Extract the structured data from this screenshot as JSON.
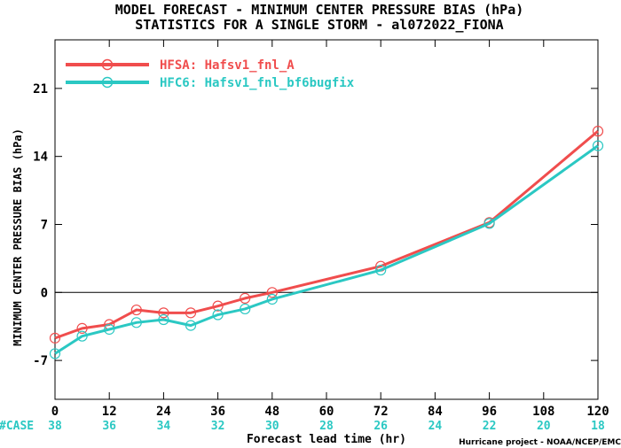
{
  "chart_data": {
    "type": "line",
    "title": "MODEL FORECAST - MINIMUM CENTER PRESSURE BIAS (hPa)",
    "subtitle": "STATISTICS FOR A SINGLE STORM - al072022_FIONA",
    "xlabel": "Forecast lead time (hr)",
    "ylabel": "MINIMUM CENTER PRESSURE BIAS (hPa)",
    "credit": "Hurricane project - NOAA/NCEP/EMC",
    "xlim": [
      0,
      120
    ],
    "ylim": [
      -11,
      26
    ],
    "x_ticks": [
      0,
      12,
      24,
      36,
      48,
      60,
      72,
      84,
      96,
      108,
      120
    ],
    "y_ticks": [
      -7,
      0,
      7,
      14,
      21
    ],
    "zero_line": true,
    "grid": false,
    "legend_position": "top-left",
    "case_label": "#CASE",
    "case_counts": [
      38,
      36,
      34,
      32,
      30,
      28,
      26,
      24,
      22,
      20,
      18
    ],
    "series": [
      {
        "name": "HFSA: Hafsv1_fnl_A",
        "color": "#f04d4d",
        "x": [
          0,
          6,
          12,
          18,
          24,
          30,
          36,
          42,
          48,
          72,
          96,
          120
        ],
        "values": [
          -4.7,
          -3.7,
          -3.3,
          -1.8,
          -2.1,
          -2.1,
          -1.4,
          -0.6,
          0.0,
          2.7,
          7.2,
          16.6
        ]
      },
      {
        "name": "HFC6: Hafsv1_fnl_bf6bugfix",
        "color": "#2bc8c3",
        "x": [
          0,
          6,
          12,
          18,
          24,
          30,
          36,
          42,
          48,
          72,
          96,
          120
        ],
        "values": [
          -6.3,
          -4.5,
          -3.8,
          -3.1,
          -2.8,
          -3.4,
          -2.3,
          -1.7,
          -0.7,
          2.3,
          7.1,
          15.1
        ]
      }
    ]
  }
}
